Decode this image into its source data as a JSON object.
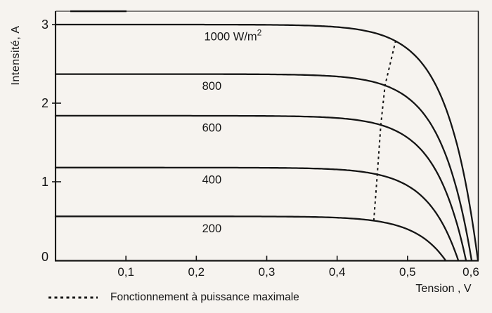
{
  "figure": {
    "background": "#f6f3ef",
    "ink": "#151515"
  },
  "chart_data": {
    "type": "line",
    "title": "",
    "xlabel": "Tension , V",
    "ylabel": "Intensité, A",
    "xlim": [
      0,
      0.6
    ],
    "ylim": [
      0,
      3.17
    ],
    "grid": false,
    "x_ticks": [
      {
        "value": 0.1,
        "label": "0,1"
      },
      {
        "value": 0.2,
        "label": "0,2"
      },
      {
        "value": 0.3,
        "label": "0,3"
      },
      {
        "value": 0.4,
        "label": "0,4"
      },
      {
        "value": 0.5,
        "label": "0,5"
      },
      {
        "value": 0.6,
        "label": "0,6"
      }
    ],
    "y_ticks": [
      {
        "value": 0,
        "label": "0"
      },
      {
        "value": 1,
        "label": "1"
      },
      {
        "value": 2,
        "label": "2"
      },
      {
        "value": 3,
        "label": "3"
      }
    ],
    "series": [
      {
        "name": "1000",
        "label": "1000 W/m^2",
        "irradiance_w_m2": 1000,
        "isc_a": 3.0,
        "voc_v": 0.6,
        "label_v": 0.252,
        "mpp_v": 0.483
      },
      {
        "name": "800",
        "label": "800",
        "irradiance_w_m2": 800,
        "isc_a": 2.37,
        "voc_v": 0.591,
        "label_v": 0.222,
        "mpp_v": 0.468
      },
      {
        "name": "600",
        "label": "600",
        "irradiance_w_m2": 600,
        "isc_a": 1.84,
        "voc_v": 0.583,
        "label_v": 0.222,
        "mpp_v": 0.462
      },
      {
        "name": "400",
        "label": "400",
        "irradiance_w_m2": 400,
        "isc_a": 1.18,
        "voc_v": 0.572,
        "label_v": 0.222,
        "mpp_v": 0.457
      },
      {
        "name": "200",
        "label": "200",
        "irradiance_w_m2": 200,
        "isc_a": 0.56,
        "voc_v": 0.554,
        "label_v": 0.222,
        "mpp_v": 0.452
      }
    ],
    "mpp_locus": {
      "style": "dashed",
      "legend_label": "Fonctionnement à puissance maximale",
      "legend_position": "bottom-left"
    }
  }
}
